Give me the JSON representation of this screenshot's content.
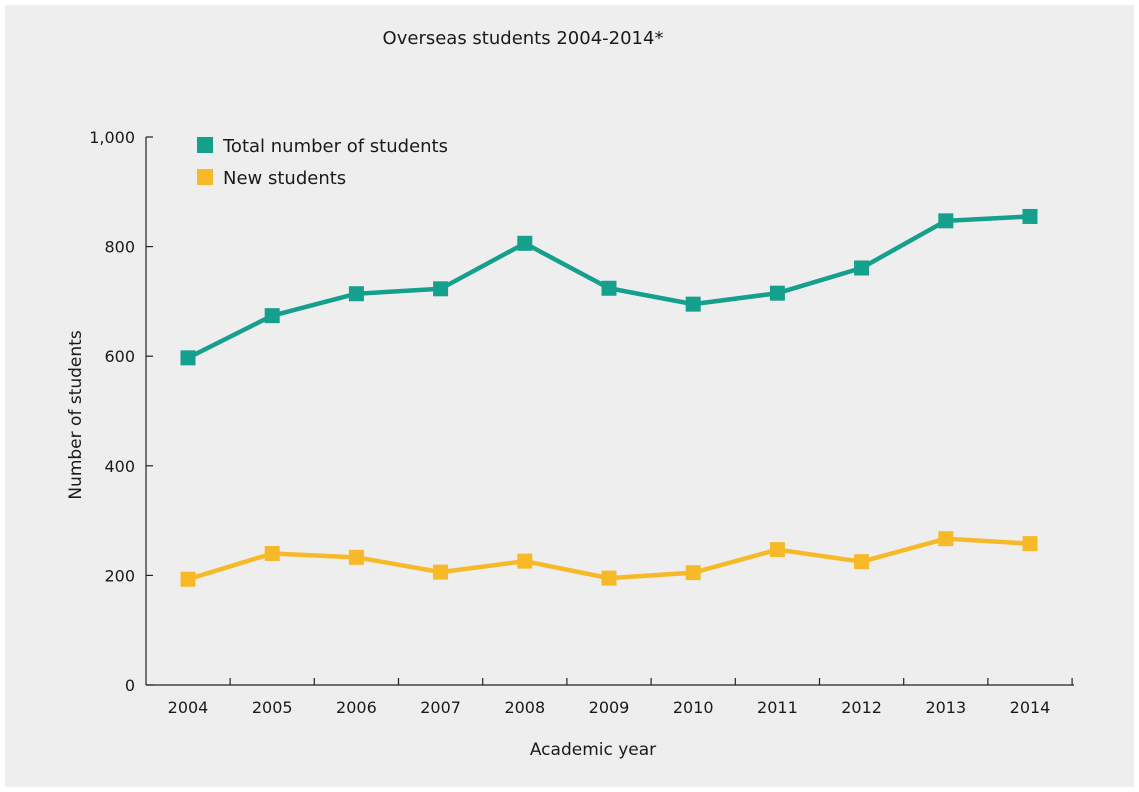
{
  "chart_data": {
    "type": "line",
    "title": "Overseas students 2004-2014*",
    "xlabel": "Academic year",
    "ylabel": "Number of  students",
    "categories": [
      "2004",
      "2005",
      "2006",
      "2007",
      "2008",
      "2009",
      "2010",
      "2011",
      "2012",
      "2013",
      "2014"
    ],
    "ylim": [
      0,
      1000
    ],
    "yticks": [
      0,
      200,
      400,
      600,
      800,
      1000
    ],
    "ytick_labels": [
      "0",
      "200",
      "400",
      "600",
      "800",
      "1,000"
    ],
    "grid": false,
    "legend_position": "top-left",
    "series": [
      {
        "name": "Total number of students",
        "color": "#14a08c",
        "values": [
          597,
          674,
          714,
          723,
          806,
          724,
          695,
          715,
          761,
          847,
          855
        ]
      },
      {
        "name": "New students",
        "color": "#f7b928",
        "values": [
          193,
          240,
          233,
          206,
          226,
          195,
          205,
          247,
          225,
          267,
          258
        ]
      }
    ]
  }
}
